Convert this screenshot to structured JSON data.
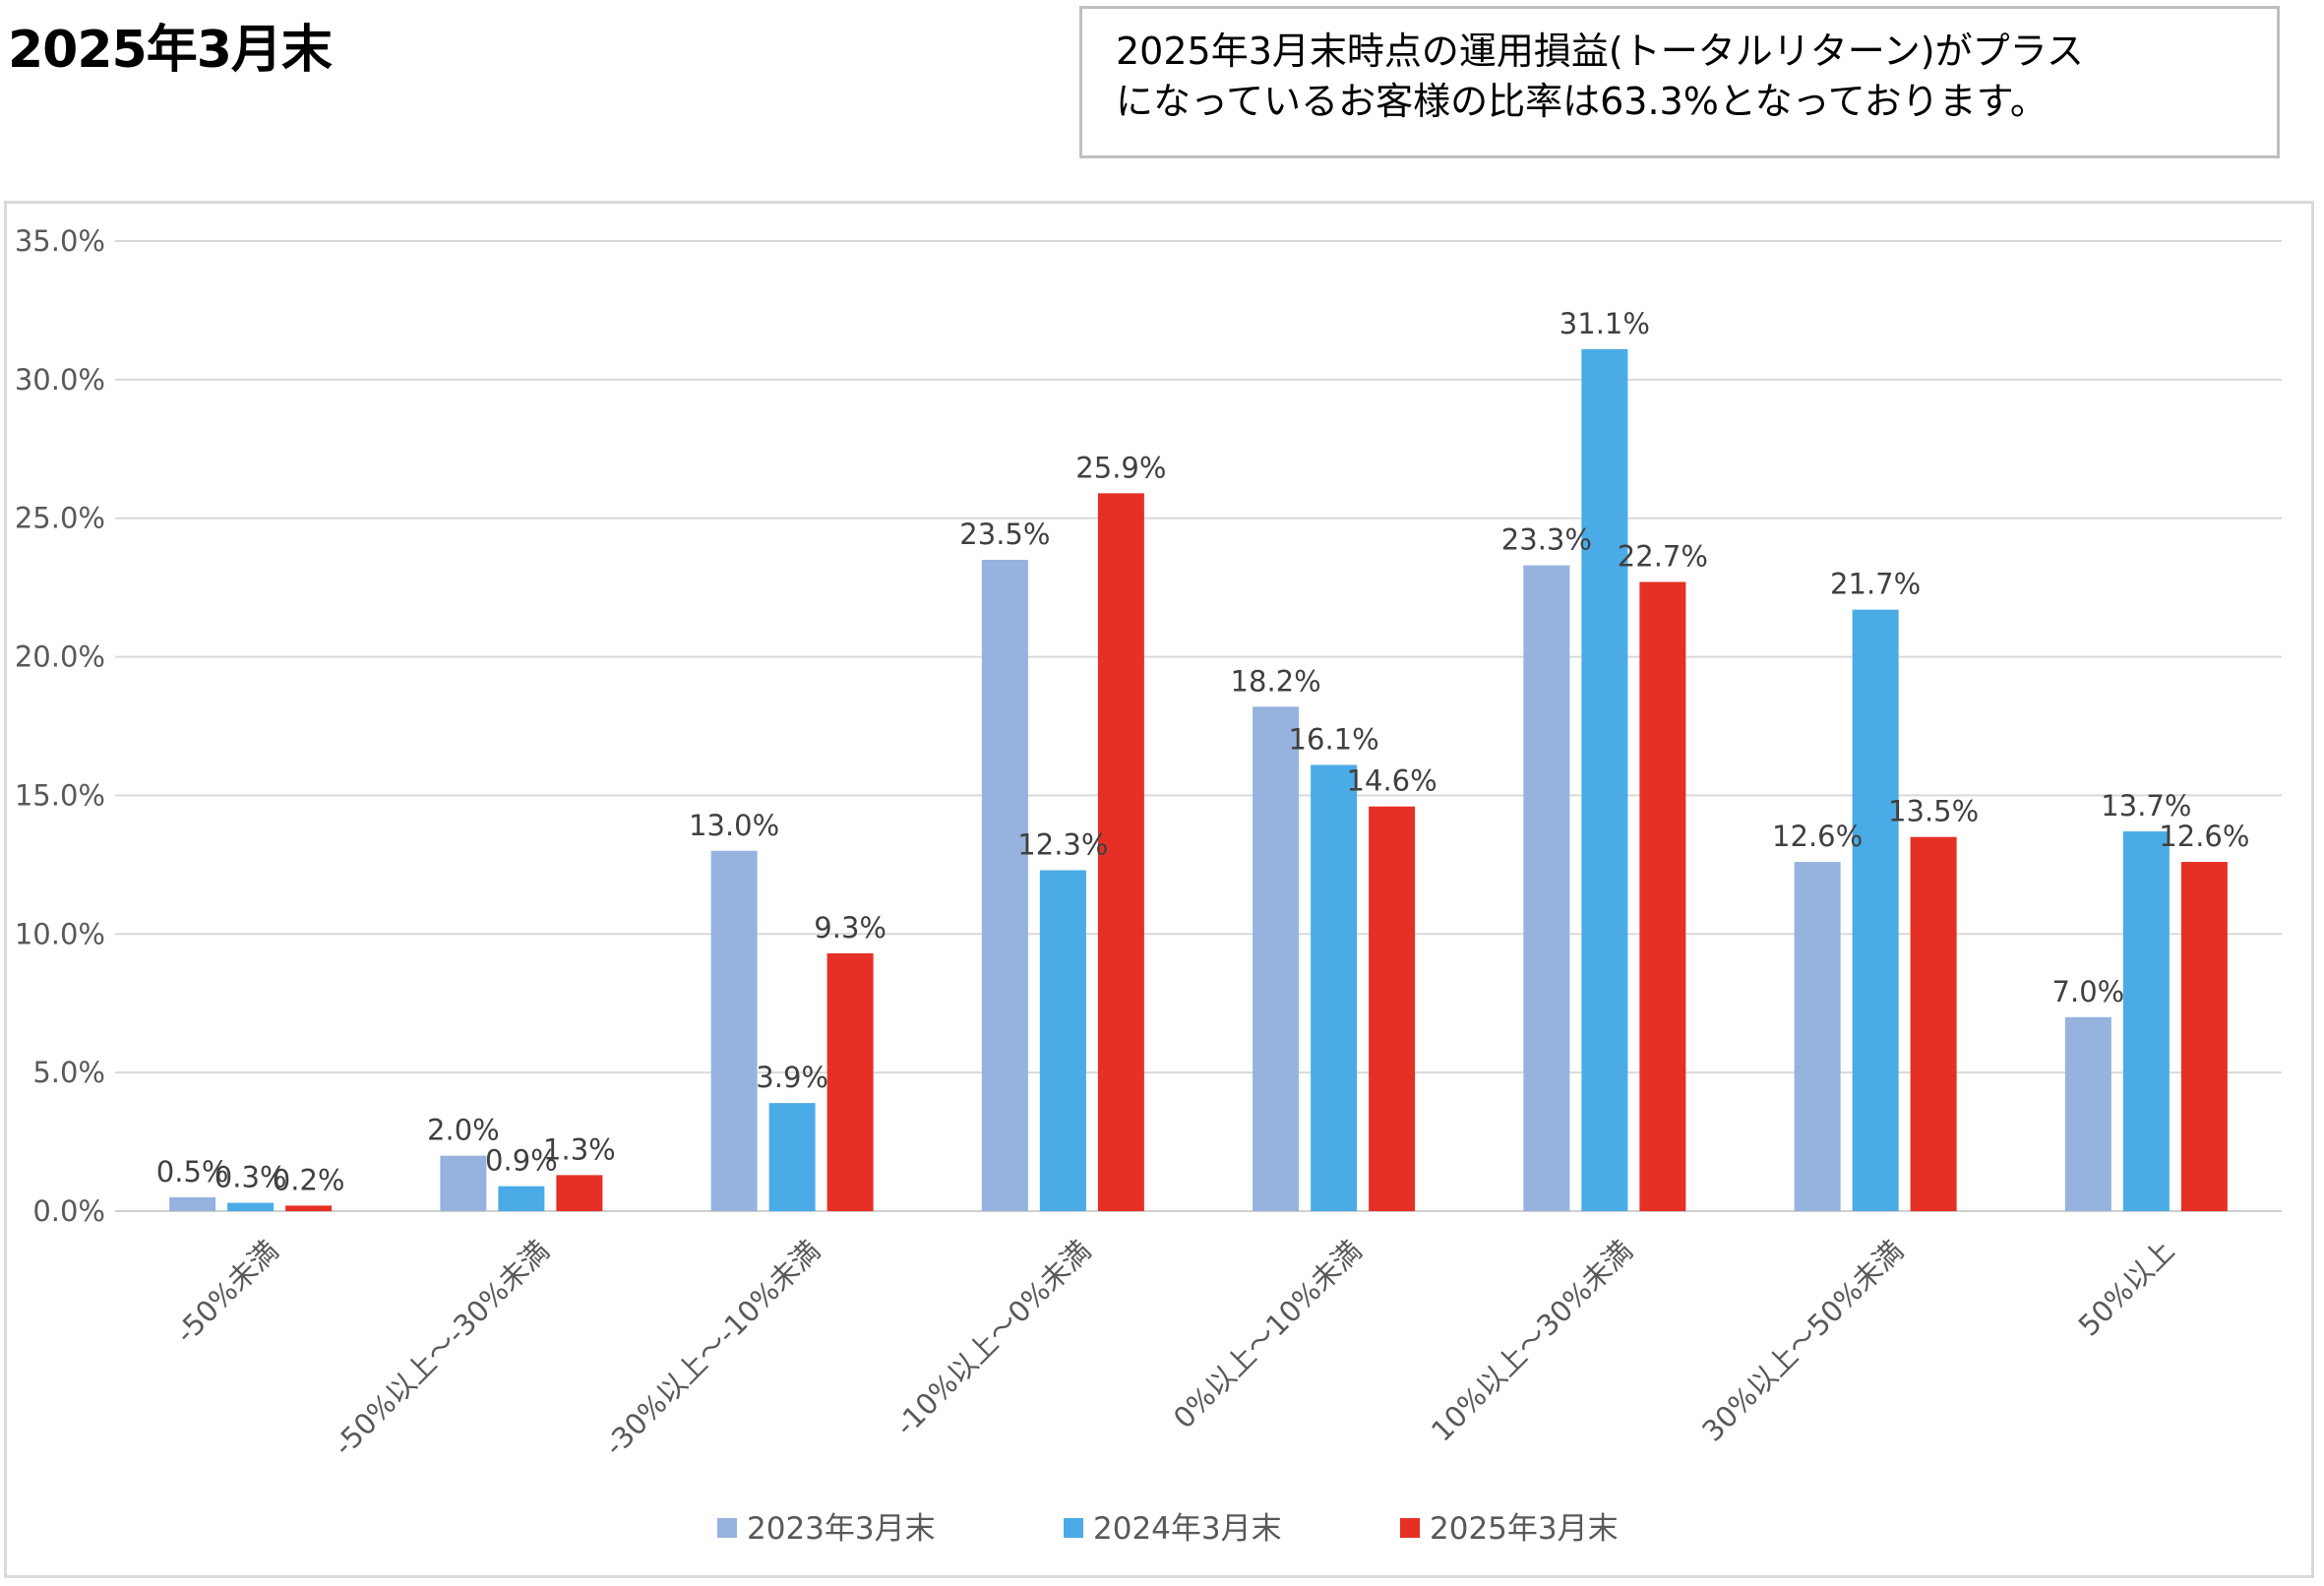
{
  "header": {
    "title": "2025年3月末",
    "note_line1": "2025年3月末時点の運用損益(トータルリターン)がプラス",
    "note_line2": "になっているお客様の比率は63.3%となっております。"
  },
  "chart_data": {
    "type": "bar",
    "categories": [
      "-50%未満",
      "-50%以上～-30%未満",
      "-30%以上～-10%未満",
      "-10%以上～0%未満",
      "0%以上～10%未満",
      "10%以上～30%未満",
      "30%以上～50%未満",
      "50%以上"
    ],
    "series": [
      {
        "name": "2023年3月末",
        "color": "#95b3de",
        "values": [
          0.5,
          2.0,
          13.0,
          23.5,
          18.2,
          23.3,
          12.6,
          7.0
        ]
      },
      {
        "name": "2024年3月末",
        "color": "#4aabe6",
        "values": [
          0.3,
          0.9,
          3.9,
          12.3,
          16.1,
          31.1,
          21.7,
          13.7
        ]
      },
      {
        "name": "2025年3月末",
        "color": "#e63025",
        "values": [
          0.2,
          1.3,
          9.3,
          25.9,
          14.6,
          22.7,
          13.5,
          12.6
        ]
      }
    ],
    "y_ticks": [
      "0.0%",
      "5.0%",
      "10.0%",
      "15.0%",
      "20.0%",
      "25.0%",
      "30.0%",
      "35.0%"
    ],
    "ylim": [
      0,
      35
    ],
    "grid": true,
    "legend_position": "bottom",
    "value_format": "percent, 1 decimal"
  }
}
